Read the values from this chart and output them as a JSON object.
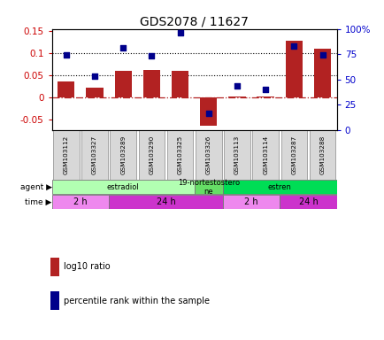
{
  "title": "GDS2078 / 11627",
  "samples": [
    "GSM103112",
    "GSM103327",
    "GSM103289",
    "GSM103290",
    "GSM103325",
    "GSM103326",
    "GSM103113",
    "GSM103114",
    "GSM103287",
    "GSM103288"
  ],
  "log10_ratio": [
    0.035,
    0.022,
    0.06,
    0.062,
    0.06,
    -0.065,
    0.002,
    0.002,
    0.128,
    0.11
  ],
  "percentile_rank": [
    74,
    53.5,
    81.5,
    73.5,
    96,
    17,
    44,
    40.5,
    83.5,
    74
  ],
  "bar_color": "#b22222",
  "dot_color": "#00008b",
  "ylim_left": [
    -0.075,
    0.155
  ],
  "ylim_right": [
    0,
    100
  ],
  "yticks_left": [
    -0.05,
    0.0,
    0.05,
    0.1,
    0.15
  ],
  "yticks_right": [
    0,
    25,
    50,
    75,
    100
  ],
  "hlines_dotted": [
    0.05,
    0.1
  ],
  "agent_groups": [
    {
      "label": "estradiol",
      "start": 0,
      "end": 5,
      "color": "#b2ffb2"
    },
    {
      "label": "19-nortestostero\nne",
      "start": 5,
      "end": 6,
      "color": "#66dd66"
    },
    {
      "label": "estren",
      "start": 6,
      "end": 10,
      "color": "#00dd55"
    }
  ],
  "time_groups": [
    {
      "label": "2 h",
      "start": 0,
      "end": 2,
      "color": "#ee88ee"
    },
    {
      "label": "24 h",
      "start": 2,
      "end": 6,
      "color": "#cc33cc"
    },
    {
      "label": "2 h",
      "start": 6,
      "end": 8,
      "color": "#ee88ee"
    },
    {
      "label": "24 h",
      "start": 8,
      "end": 10,
      "color": "#cc33cc"
    }
  ],
  "left_label_color": "#cc0000",
  "right_label_color": "#0000cc",
  "background_color": "#ffffff"
}
